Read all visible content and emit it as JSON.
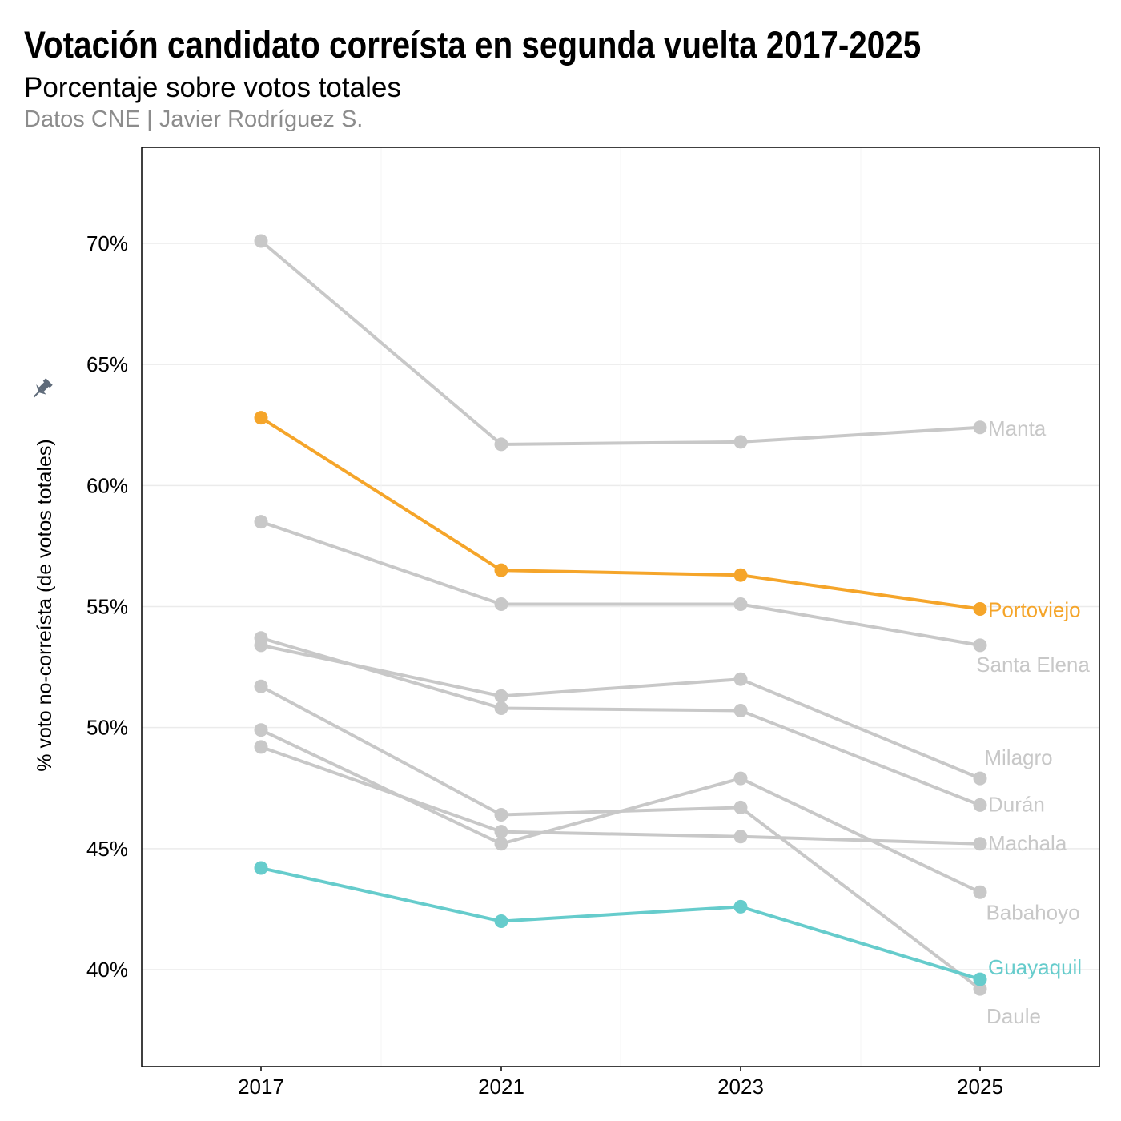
{
  "title": "Votación candidato correísta en segunda vuelta 2017-2025",
  "subtitle": "Porcentaje sobre votos totales",
  "caption": "Datos CNE | Javier Rodríguez S.",
  "pin_icon": "pin-icon",
  "chart_data": {
    "type": "line",
    "title": "Votación candidato correísta en segunda vuelta 2017-2025",
    "subtitle": "Porcentaje sobre votos totales",
    "ylabel": "% voto no-correísta (de votos totales)",
    "xlabel": "",
    "categories": [
      "2017",
      "2021",
      "2023",
      "2025"
    ],
    "ylim": [
      36,
      74
    ],
    "yticks": [
      40,
      45,
      50,
      55,
      60,
      65,
      70
    ],
    "ytick_labels": [
      "40%",
      "45%",
      "50%",
      "55%",
      "60%",
      "65%",
      "70%"
    ],
    "grid": true,
    "series": [
      {
        "name": "Manta",
        "values": [
          70.1,
          61.7,
          61.8,
          62.4
        ],
        "color": "#c8c8c8",
        "highlight": false
      },
      {
        "name": "Santa Elena",
        "values": [
          58.5,
          55.1,
          55.1,
          53.4
        ],
        "color": "#c8c8c8",
        "highlight": false
      },
      {
        "name": "Milagro",
        "values": [
          53.4,
          51.3,
          52.0,
          47.9
        ],
        "color": "#c8c8c8",
        "highlight": false
      },
      {
        "name": "Durán",
        "values": [
          53.7,
          50.8,
          50.7,
          46.8
        ],
        "color": "#c8c8c8",
        "highlight": false
      },
      {
        "name": "Machala",
        "values": [
          49.2,
          45.7,
          45.5,
          45.2
        ],
        "color": "#c8c8c8",
        "highlight": false
      },
      {
        "name": "Babahoyo",
        "values": [
          49.9,
          45.2,
          47.9,
          43.2
        ],
        "color": "#c8c8c8",
        "highlight": false
      },
      {
        "name": "Daule",
        "values": [
          51.7,
          46.4,
          46.7,
          39.2
        ],
        "color": "#c8c8c8",
        "highlight": false
      },
      {
        "name": "Portoviejo",
        "values": [
          62.8,
          56.5,
          56.3,
          54.9
        ],
        "color": "#f5a52a",
        "highlight": true
      },
      {
        "name": "Guayaquil",
        "values": [
          44.2,
          42.0,
          42.6,
          39.6
        ],
        "color": "#66cccc",
        "highlight": true
      }
    ]
  }
}
